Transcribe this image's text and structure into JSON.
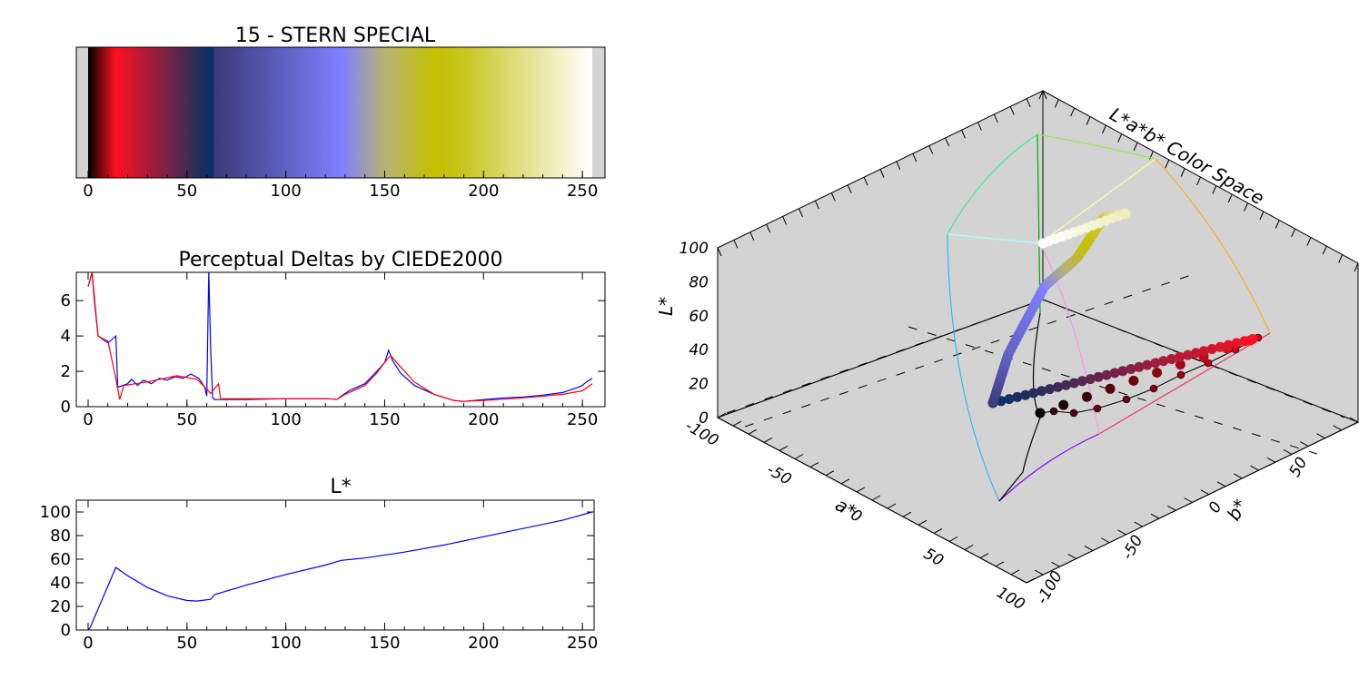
{
  "chart_data": [
    {
      "type": "colorbar",
      "title": "15 - STERN SPECIAL",
      "xlim": [
        0,
        255
      ],
      "xticks": [
        "0",
        "50",
        "100",
        "150",
        "200",
        "250"
      ],
      "stops": [
        {
          "x": 0,
          "color": "#000000"
        },
        {
          "x": 14,
          "color": "#ff1020"
        },
        {
          "x": 63,
          "color": "#003366"
        },
        {
          "x": 64,
          "color": "#3a3a7a"
        },
        {
          "x": 128,
          "color": "#7f7fff"
        },
        {
          "x": 150,
          "color": "#b6b276"
        },
        {
          "x": 175,
          "color": "#c5c000"
        },
        {
          "x": 190,
          "color": "#c8c520"
        },
        {
          "x": 255,
          "color": "#ffffff"
        }
      ]
    },
    {
      "type": "line",
      "title": "Perceptual Deltas by CIEDE2000",
      "xlim": [
        0,
        255
      ],
      "ylim": [
        0,
        7.6
      ],
      "xticks": [
        "0",
        "50",
        "100",
        "150",
        "200",
        "250"
      ],
      "yticks": [
        "0",
        "2",
        "4",
        "6"
      ],
      "series": [
        {
          "color": "#0000ff",
          "x": [
            0,
            2,
            3,
            5,
            10,
            14,
            15,
            20,
            22,
            25,
            28,
            32,
            36,
            40,
            44,
            48,
            52,
            56,
            59,
            60,
            61,
            62,
            63,
            64,
            65,
            66,
            68,
            80,
            100,
            120,
            126,
            128,
            132,
            140,
            146,
            150,
            152,
            154,
            158,
            165,
            175,
            185,
            190,
            200,
            210,
            220,
            230,
            240,
            248,
            250,
            252,
            255
          ],
          "y": [
            6.8,
            7.6,
            6.2,
            4.0,
            3.6,
            4.0,
            1.1,
            1.3,
            1.55,
            1.2,
            1.5,
            1.3,
            1.6,
            1.5,
            1.7,
            1.6,
            1.85,
            1.6,
            1.1,
            0.6,
            7.6,
            3.2,
            0.5,
            0.4,
            0.4,
            0.4,
            0.4,
            0.4,
            0.45,
            0.45,
            0.42,
            0.6,
            0.9,
            1.3,
            2.0,
            2.5,
            3.2,
            2.6,
            1.9,
            1.2,
            0.7,
            0.35,
            0.3,
            0.4,
            0.5,
            0.55,
            0.65,
            0.8,
            1.1,
            1.2,
            1.4,
            1.6
          ]
        },
        {
          "color": "#ff0000",
          "x": [
            0,
            2,
            5,
            10,
            14,
            16,
            18,
            30,
            45,
            55,
            60,
            62,
            66,
            67,
            68,
            80,
            100,
            120,
            126,
            130,
            140,
            146,
            150,
            153,
            156,
            165,
            175,
            185,
            190,
            200,
            220,
            240,
            250,
            255
          ],
          "y": [
            6.8,
            7.6,
            4.0,
            3.7,
            1.6,
            0.4,
            1.2,
            1.4,
            1.75,
            1.55,
            1.0,
            0.75,
            1.3,
            0.4,
            0.45,
            0.45,
            0.45,
            0.45,
            0.42,
            0.7,
            1.2,
            1.9,
            2.5,
            2.9,
            2.5,
            1.4,
            0.7,
            0.35,
            0.3,
            0.35,
            0.5,
            0.7,
            0.9,
            1.3
          ]
        }
      ]
    },
    {
      "type": "line",
      "title": "L*",
      "xlim": [
        0,
        255
      ],
      "ylim": [
        0,
        110
      ],
      "xticks": [
        "0",
        "50",
        "100",
        "150",
        "200",
        "250"
      ],
      "yticks": [
        "0",
        "20",
        "40",
        "60",
        "80",
        "100"
      ],
      "series": [
        {
          "color": "#0000ff",
          "x": [
            0,
            1,
            14,
            20,
            30,
            40,
            50,
            55,
            62,
            63,
            64,
            80,
            100,
            120,
            128,
            140,
            160,
            180,
            200,
            220,
            240,
            255
          ],
          "y": [
            0,
            2,
            53,
            46,
            36,
            29,
            25,
            24.5,
            26,
            28,
            30,
            38,
            47,
            55,
            59,
            61,
            66,
            72,
            79,
            86,
            93,
            100
          ]
        }
      ]
    },
    {
      "type": "scatter3d",
      "title": "L*a*b* Color Space",
      "xlabel": "a*",
      "ylabel": "b*",
      "zlabel": "L*",
      "a_ticks": [
        "-100",
        "-50",
        "0",
        "50",
        "100"
      ],
      "b_ticks": [
        "-100",
        "-50",
        "0",
        "50"
      ],
      "L_ticks": [
        "0",
        "20",
        "40",
        "60",
        "80",
        "100"
      ]
    }
  ]
}
